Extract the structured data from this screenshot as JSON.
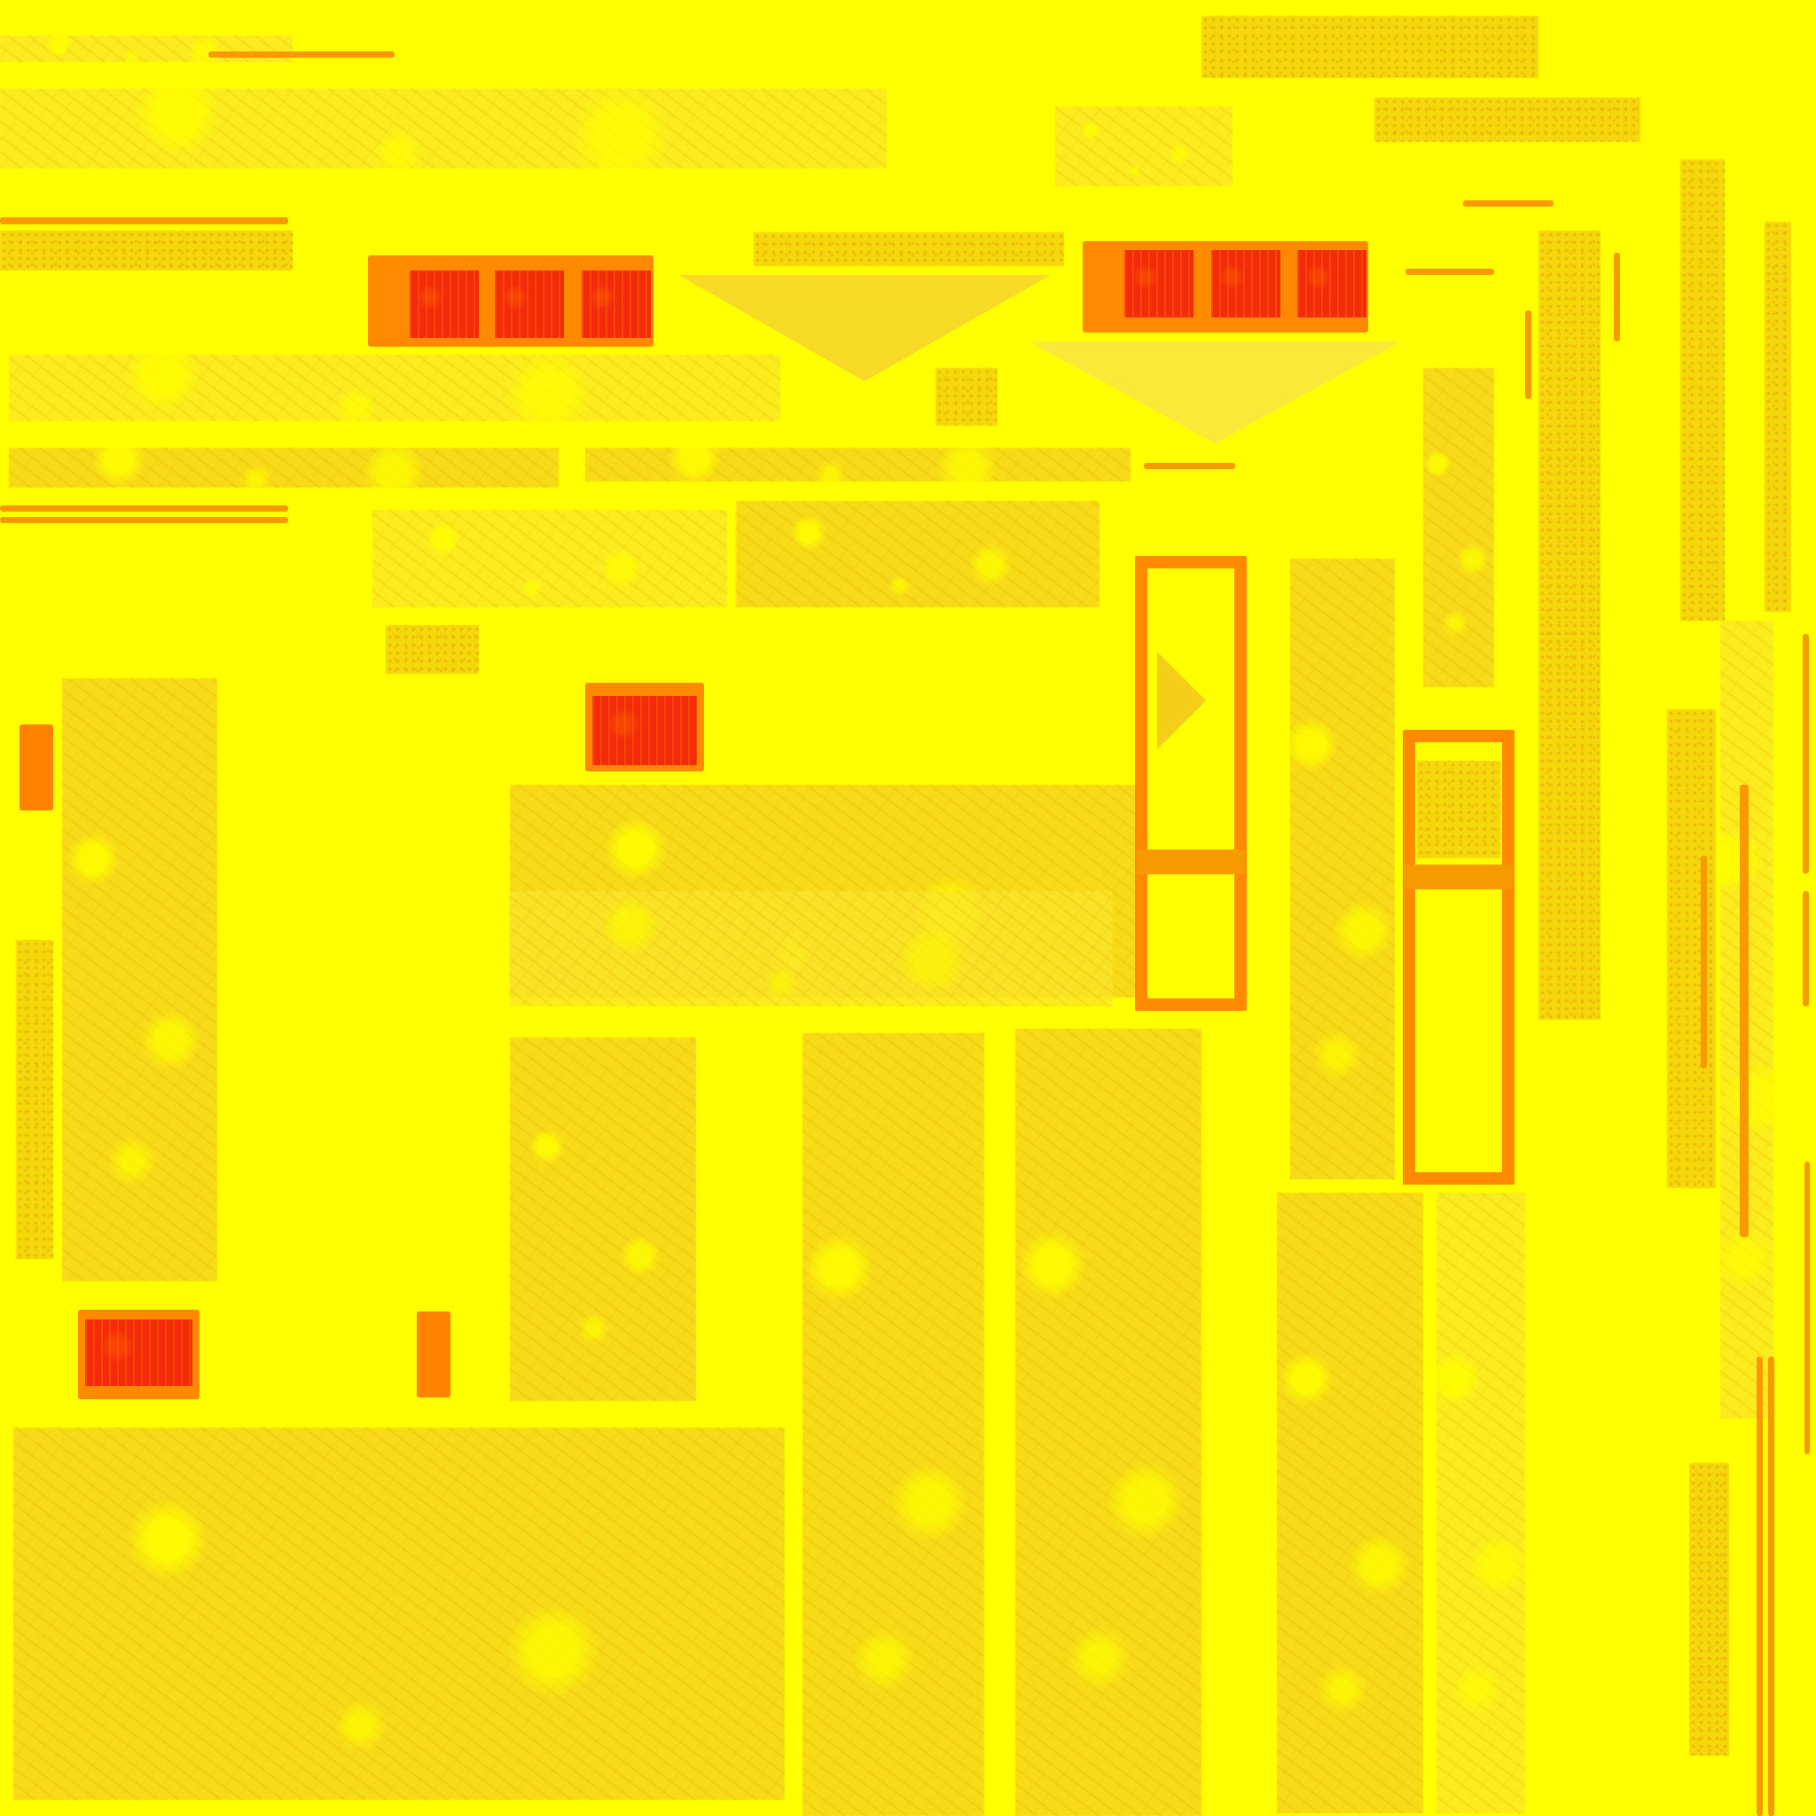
{
  "image": {
    "kind": "texture-atlas",
    "background_color": "#ffff00",
    "patch_color": "#f7d81c",
    "accent_orange": "#ff8a00",
    "accent_red": "#f42b0a",
    "visible_text": []
  }
}
